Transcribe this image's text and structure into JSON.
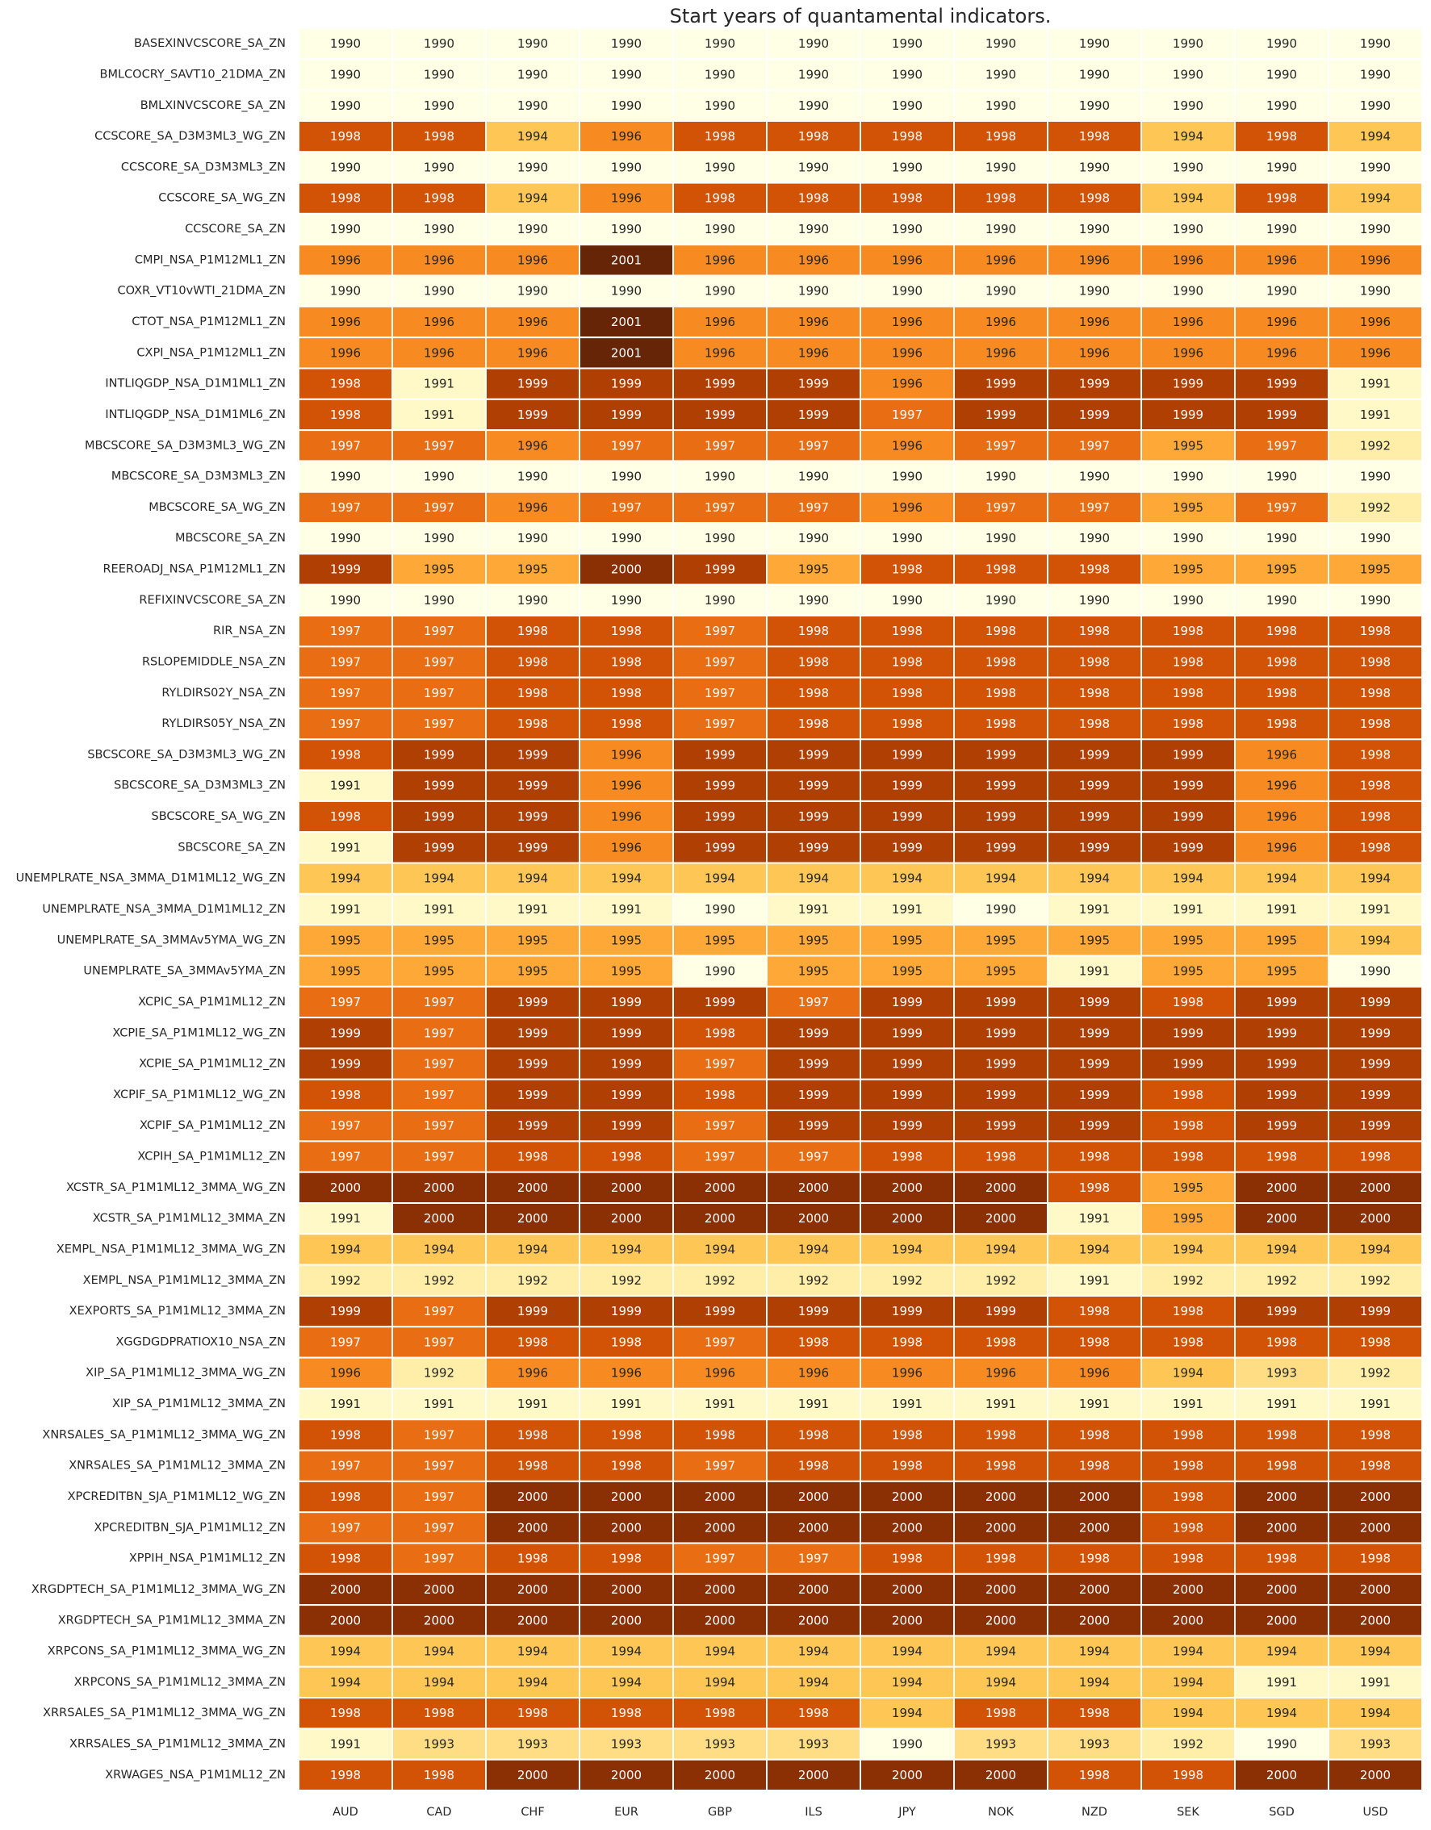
{
  "chart_data": {
    "type": "heatmap",
    "title": "Start years of quantamental indicators.",
    "xlabel": "",
    "ylabel": "",
    "x": [
      "AUD",
      "CAD",
      "CHF",
      "EUR",
      "GBP",
      "ILS",
      "JPY",
      "NOK",
      "NZD",
      "SEK",
      "SGD",
      "USD"
    ],
    "y": [
      "BASEXINVCSCORE_SA_ZN",
      "BMLCOCRY_SAVT10_21DMA_ZN",
      "BMLXINVCSCORE_SA_ZN",
      "CCSCORE_SA_D3M3ML3_WG_ZN",
      "CCSCORE_SA_D3M3ML3_ZN",
      "CCSCORE_SA_WG_ZN",
      "CCSCORE_SA_ZN",
      "CMPI_NSA_P1M12ML1_ZN",
      "COXR_VT10vWTI_21DMA_ZN",
      "CTOT_NSA_P1M12ML1_ZN",
      "CXPI_NSA_P1M12ML1_ZN",
      "INTLIQGDP_NSA_D1M1ML1_ZN",
      "INTLIQGDP_NSA_D1M1ML6_ZN",
      "MBCSCORE_SA_D3M3ML3_WG_ZN",
      "MBCSCORE_SA_D3M3ML3_ZN",
      "MBCSCORE_SA_WG_ZN",
      "MBCSCORE_SA_ZN",
      "REEROADJ_NSA_P1M12ML1_ZN",
      "REFIXINVCSCORE_SA_ZN",
      "RIR_NSA_ZN",
      "RSLOPEMIDDLE_NSA_ZN",
      "RYLDIRS02Y_NSA_ZN",
      "RYLDIRS05Y_NSA_ZN",
      "SBCSCORE_SA_D3M3ML3_WG_ZN",
      "SBCSCORE_SA_D3M3ML3_ZN",
      "SBCSCORE_SA_WG_ZN",
      "SBCSCORE_SA_ZN",
      "UNEMPLRATE_NSA_3MMA_D1M1ML12_WG_ZN",
      "UNEMPLRATE_NSA_3MMA_D1M1ML12_ZN",
      "UNEMPLRATE_SA_3MMAv5YMA_WG_ZN",
      "UNEMPLRATE_SA_3MMAv5YMA_ZN",
      "XCPIC_SA_P1M1ML12_ZN",
      "XCPIE_SA_P1M1ML12_WG_ZN",
      "XCPIE_SA_P1M1ML12_ZN",
      "XCPIF_SA_P1M1ML12_WG_ZN",
      "XCPIF_SA_P1M1ML12_ZN",
      "XCPIH_SA_P1M1ML12_ZN",
      "XCSTR_SA_P1M1ML12_3MMA_WG_ZN",
      "XCSTR_SA_P1M1ML12_3MMA_ZN",
      "XEMPL_NSA_P1M1ML12_3MMA_WG_ZN",
      "XEMPL_NSA_P1M1ML12_3MMA_ZN",
      "XEXPORTS_SA_P1M1ML12_3MMA_ZN",
      "XGGDGDPRATIOX10_NSA_ZN",
      "XIP_SA_P1M1ML12_3MMA_WG_ZN",
      "XIP_SA_P1M1ML12_3MMA_ZN",
      "XNRSALES_SA_P1M1ML12_3MMA_WG_ZN",
      "XNRSALES_SA_P1M1ML12_3MMA_ZN",
      "XPCREDITBN_SJA_P1M1ML12_WG_ZN",
      "XPCREDITBN_SJA_P1M1ML12_ZN",
      "XPPIH_NSA_P1M1ML12_ZN",
      "XRGDPTECH_SA_P1M1ML12_3MMA_WG_ZN",
      "XRGDPTECH_SA_P1M1ML12_3MMA_ZN",
      "XRPCONS_SA_P1M1ML12_3MMA_WG_ZN",
      "XRPCONS_SA_P1M1ML12_3MMA_ZN",
      "XRRSALES_SA_P1M1ML12_3MMA_WG_ZN",
      "XRRSALES_SA_P1M1ML12_3MMA_ZN",
      "XRWAGES_NSA_P1M1ML12_ZN"
    ],
    "values": [
      [
        1990,
        1990,
        1990,
        1990,
        1990,
        1990,
        1990,
        1990,
        1990,
        1990,
        1990,
        1990
      ],
      [
        1990,
        1990,
        1990,
        1990,
        1990,
        1990,
        1990,
        1990,
        1990,
        1990,
        1990,
        1990
      ],
      [
        1990,
        1990,
        1990,
        1990,
        1990,
        1990,
        1990,
        1990,
        1990,
        1990,
        1990,
        1990
      ],
      [
        1998,
        1998,
        1994,
        1996,
        1998,
        1998,
        1998,
        1998,
        1998,
        1994,
        1998,
        1994
      ],
      [
        1990,
        1990,
        1990,
        1990,
        1990,
        1990,
        1990,
        1990,
        1990,
        1990,
        1990,
        1990
      ],
      [
        1998,
        1998,
        1994,
        1996,
        1998,
        1998,
        1998,
        1998,
        1998,
        1994,
        1998,
        1994
      ],
      [
        1990,
        1990,
        1990,
        1990,
        1990,
        1990,
        1990,
        1990,
        1990,
        1990,
        1990,
        1990
      ],
      [
        1996,
        1996,
        1996,
        2001,
        1996,
        1996,
        1996,
        1996,
        1996,
        1996,
        1996,
        1996
      ],
      [
        1990,
        1990,
        1990,
        1990,
        1990,
        1990,
        1990,
        1990,
        1990,
        1990,
        1990,
        1990
      ],
      [
        1996,
        1996,
        1996,
        2001,
        1996,
        1996,
        1996,
        1996,
        1996,
        1996,
        1996,
        1996
      ],
      [
        1996,
        1996,
        1996,
        2001,
        1996,
        1996,
        1996,
        1996,
        1996,
        1996,
        1996,
        1996
      ],
      [
        1998,
        1991,
        1999,
        1999,
        1999,
        1999,
        1996,
        1999,
        1999,
        1999,
        1999,
        1991
      ],
      [
        1998,
        1991,
        1999,
        1999,
        1999,
        1999,
        1997,
        1999,
        1999,
        1999,
        1999,
        1991
      ],
      [
        1997,
        1997,
        1996,
        1997,
        1997,
        1997,
        1996,
        1997,
        1997,
        1995,
        1997,
        1992
      ],
      [
        1990,
        1990,
        1990,
        1990,
        1990,
        1990,
        1990,
        1990,
        1990,
        1990,
        1990,
        1990
      ],
      [
        1997,
        1997,
        1996,
        1997,
        1997,
        1997,
        1996,
        1997,
        1997,
        1995,
        1997,
        1992
      ],
      [
        1990,
        1990,
        1990,
        1990,
        1990,
        1990,
        1990,
        1990,
        1990,
        1990,
        1990,
        1990
      ],
      [
        1999,
        1995,
        1995,
        2000,
        1999,
        1995,
        1998,
        1998,
        1998,
        1995,
        1995,
        1995
      ],
      [
        1990,
        1990,
        1990,
        1990,
        1990,
        1990,
        1990,
        1990,
        1990,
        1990,
        1990,
        1990
      ],
      [
        1997,
        1997,
        1998,
        1998,
        1997,
        1998,
        1998,
        1998,
        1998,
        1998,
        1998,
        1998
      ],
      [
        1997,
        1997,
        1998,
        1998,
        1997,
        1998,
        1998,
        1998,
        1998,
        1998,
        1998,
        1998
      ],
      [
        1997,
        1997,
        1998,
        1998,
        1997,
        1998,
        1998,
        1998,
        1998,
        1998,
        1998,
        1998
      ],
      [
        1997,
        1997,
        1998,
        1998,
        1997,
        1998,
        1998,
        1998,
        1998,
        1998,
        1998,
        1998
      ],
      [
        1998,
        1999,
        1999,
        1996,
        1999,
        1999,
        1999,
        1999,
        1999,
        1999,
        1996,
        1998
      ],
      [
        1991,
        1999,
        1999,
        1996,
        1999,
        1999,
        1999,
        1999,
        1999,
        1999,
        1996,
        1998
      ],
      [
        1998,
        1999,
        1999,
        1996,
        1999,
        1999,
        1999,
        1999,
        1999,
        1999,
        1996,
        1998
      ],
      [
        1991,
        1999,
        1999,
        1996,
        1999,
        1999,
        1999,
        1999,
        1999,
        1999,
        1996,
        1998
      ],
      [
        1994,
        1994,
        1994,
        1994,
        1994,
        1994,
        1994,
        1994,
        1994,
        1994,
        1994,
        1994
      ],
      [
        1991,
        1991,
        1991,
        1991,
        1990,
        1991,
        1991,
        1990,
        1991,
        1991,
        1991,
        1991
      ],
      [
        1995,
        1995,
        1995,
        1995,
        1995,
        1995,
        1995,
        1995,
        1995,
        1995,
        1995,
        1994
      ],
      [
        1995,
        1995,
        1995,
        1995,
        1990,
        1995,
        1995,
        1995,
        1991,
        1995,
        1995,
        1990
      ],
      [
        1997,
        1997,
        1999,
        1999,
        1999,
        1997,
        1999,
        1999,
        1999,
        1998,
        1999,
        1999
      ],
      [
        1999,
        1997,
        1999,
        1999,
        1998,
        1999,
        1999,
        1999,
        1999,
        1999,
        1999,
        1999
      ],
      [
        1999,
        1997,
        1999,
        1999,
        1997,
        1999,
        1999,
        1999,
        1999,
        1999,
        1999,
        1999
      ],
      [
        1998,
        1997,
        1999,
        1999,
        1998,
        1999,
        1999,
        1999,
        1999,
        1998,
        1999,
        1999
      ],
      [
        1997,
        1997,
        1999,
        1999,
        1997,
        1999,
        1999,
        1999,
        1999,
        1998,
        1999,
        1999
      ],
      [
        1997,
        1997,
        1998,
        1998,
        1997,
        1997,
        1998,
        1998,
        1998,
        1998,
        1998,
        1998
      ],
      [
        2000,
        2000,
        2000,
        2000,
        2000,
        2000,
        2000,
        2000,
        1998,
        1995,
        2000,
        2000
      ],
      [
        1991,
        2000,
        2000,
        2000,
        2000,
        2000,
        2000,
        2000,
        1991,
        1995,
        2000,
        2000
      ],
      [
        1994,
        1994,
        1994,
        1994,
        1994,
        1994,
        1994,
        1994,
        1994,
        1994,
        1994,
        1994
      ],
      [
        1992,
        1992,
        1992,
        1992,
        1992,
        1992,
        1992,
        1992,
        1991,
        1992,
        1992,
        1992
      ],
      [
        1999,
        1997,
        1999,
        1999,
        1999,
        1999,
        1999,
        1999,
        1998,
        1998,
        1999,
        1999
      ],
      [
        1997,
        1997,
        1998,
        1998,
        1997,
        1998,
        1998,
        1998,
        1998,
        1998,
        1998,
        1998
      ],
      [
        1996,
        1992,
        1996,
        1996,
        1996,
        1996,
        1996,
        1996,
        1996,
        1994,
        1993,
        1992
      ],
      [
        1991,
        1991,
        1991,
        1991,
        1991,
        1991,
        1991,
        1991,
        1991,
        1991,
        1991,
        1991
      ],
      [
        1998,
        1997,
        1998,
        1998,
        1998,
        1998,
        1998,
        1998,
        1998,
        1998,
        1998,
        1998
      ],
      [
        1997,
        1997,
        1998,
        1998,
        1997,
        1998,
        1998,
        1998,
        1998,
        1998,
        1998,
        1998
      ],
      [
        1998,
        1997,
        2000,
        2000,
        2000,
        2000,
        2000,
        2000,
        2000,
        1998,
        2000,
        2000
      ],
      [
        1997,
        1997,
        2000,
        2000,
        2000,
        2000,
        2000,
        2000,
        2000,
        1998,
        2000,
        2000
      ],
      [
        1998,
        1997,
        1998,
        1998,
        1997,
        1997,
        1998,
        1998,
        1998,
        1998,
        1998,
        1998
      ],
      [
        2000,
        2000,
        2000,
        2000,
        2000,
        2000,
        2000,
        2000,
        2000,
        2000,
        2000,
        2000
      ],
      [
        2000,
        2000,
        2000,
        2000,
        2000,
        2000,
        2000,
        2000,
        2000,
        2000,
        2000,
        2000
      ],
      [
        1994,
        1994,
        1994,
        1994,
        1994,
        1994,
        1994,
        1994,
        1994,
        1994,
        1994,
        1994
      ],
      [
        1994,
        1994,
        1994,
        1994,
        1994,
        1994,
        1994,
        1994,
        1994,
        1994,
        1991,
        1991
      ],
      [
        1998,
        1998,
        1998,
        1998,
        1998,
        1998,
        1994,
        1998,
        1998,
        1994,
        1994,
        1994
      ],
      [
        1991,
        1993,
        1993,
        1993,
        1993,
        1993,
        1990,
        1993,
        1993,
        1992,
        1990,
        1993
      ],
      [
        1998,
        1998,
        2000,
        2000,
        2000,
        2000,
        2000,
        2000,
        1998,
        1998,
        2000,
        2000
      ]
    ],
    "colorscale": "YlOrBr",
    "colorbar": false,
    "grid": false,
    "legend": "none"
  }
}
